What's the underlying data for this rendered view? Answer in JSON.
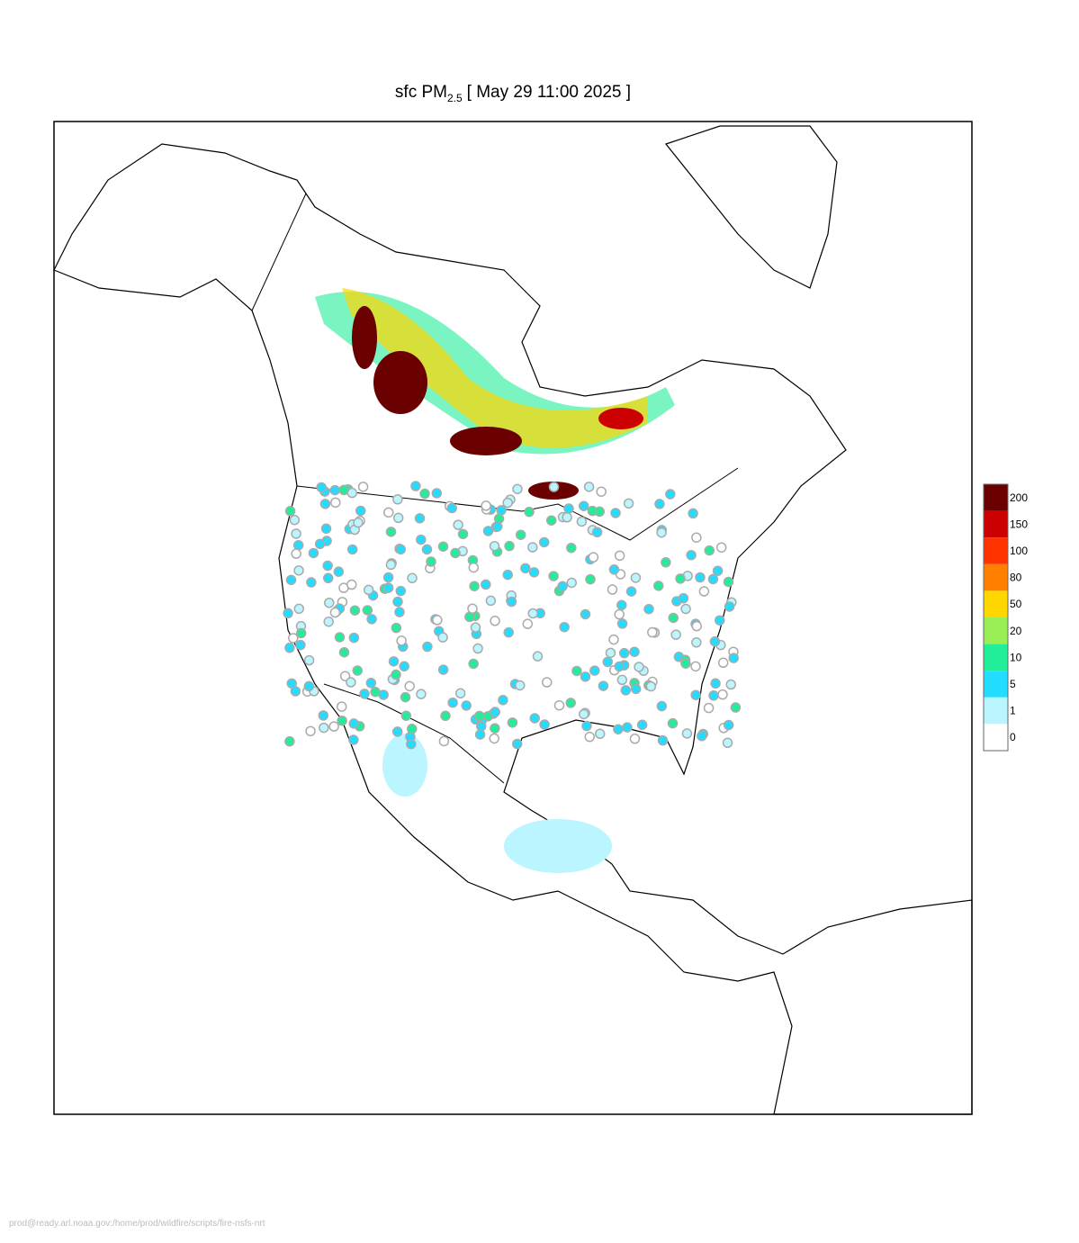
{
  "header": {
    "title": {
      "main": "sfc PM",
      "subscript": "2.5",
      "time": "[ May 29 11:00 2025 ]"
    }
  },
  "legend": {
    "levels": [
      {
        "label": 200,
        "color": "#6b0000"
      },
      {
        "label": 150,
        "color": "#cc0000"
      },
      {
        "label": 100,
        "color": "#ff3300"
      },
      {
        "label": 80,
        "color": "#ff8000"
      },
      {
        "label": 50,
        "color": "#ffd700"
      },
      {
        "label": 20,
        "color": "#99ee55"
      },
      {
        "label": 10,
        "color": "#22ee99"
      },
      {
        "label": 5,
        "color": "#22ddff"
      },
      {
        "label": 1,
        "color": "#bbf5ff"
      },
      {
        "label": 0,
        "color": "#ffffff"
      }
    ]
  },
  "footer": {
    "path": "prod@ready.arl.noaa.gov:/home/prod/wildfire/scripts/fire-nsfs-nrt"
  }
}
